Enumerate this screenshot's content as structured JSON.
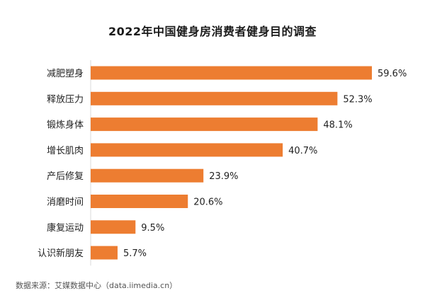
{
  "chart_data": {
    "type": "bar",
    "orientation": "horizontal",
    "title": "2022年中国健身房消费者健身目的调查",
    "categories": [
      "减肥塑身",
      "释放压力",
      "锻炼身体",
      "增长肌肉",
      "产后修复",
      "消磨时间",
      "康复运动",
      "认识新朋友"
    ],
    "values": [
      59.6,
      52.3,
      48.1,
      40.7,
      23.9,
      20.6,
      9.5,
      5.7
    ],
    "value_labels": [
      "59.6%",
      "52.3%",
      "48.1%",
      "40.7%",
      "23.9%",
      "20.6%",
      "9.5%",
      "5.7%"
    ],
    "unit": "%",
    "xlim": [
      0,
      59.6
    ],
    "grid": false,
    "legend": "none",
    "bar_color": "#ED7D31"
  },
  "source": "数据来源：艾媒数据中心（data.iimedia.cn）"
}
